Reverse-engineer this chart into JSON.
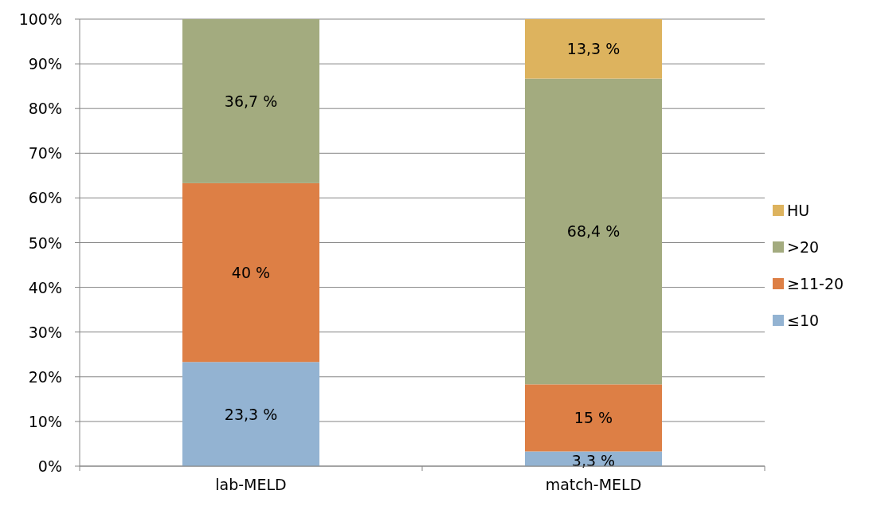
{
  "chart_data": {
    "type": "bar",
    "stacked": true,
    "categories": [
      "lab-MELD",
      "match-MELD"
    ],
    "series": [
      {
        "name": "≤10",
        "color": "#93b3d2",
        "values": [
          23.3,
          3.3
        ],
        "value_labels": [
          "23,3 %",
          "3,3 %"
        ]
      },
      {
        "name": "≥11-20",
        "color": "#dd7f45",
        "values": [
          40,
          15
        ],
        "value_labels": [
          "40 %",
          "15 %"
        ]
      },
      {
        "name": ">20",
        "color": "#a3ab7f",
        "values": [
          36.7,
          68.4
        ],
        "value_labels": [
          "36,7 %",
          "68,4 %"
        ]
      },
      {
        "name": "HU",
        "color": "#ddb35e",
        "values": [
          null,
          13.3
        ],
        "value_labels": [
          null,
          "13,3 %"
        ]
      }
    ],
    "ylim": [
      0,
      100
    ],
    "yticks": [
      {
        "value": 0,
        "label": "0%"
      },
      {
        "value": 10,
        "label": "10%"
      },
      {
        "value": 20,
        "label": "20%"
      },
      {
        "value": 30,
        "label": "30%"
      },
      {
        "value": 40,
        "label": "40%"
      },
      {
        "value": 50,
        "label": "50%"
      },
      {
        "value": 60,
        "label": "60%"
      },
      {
        "value": 70,
        "label": "70%"
      },
      {
        "value": 80,
        "label": "80%"
      },
      {
        "value": 90,
        "label": "90%"
      },
      {
        "value": 100,
        "label": "100%"
      }
    ],
    "grid": "y",
    "legend": "right"
  }
}
